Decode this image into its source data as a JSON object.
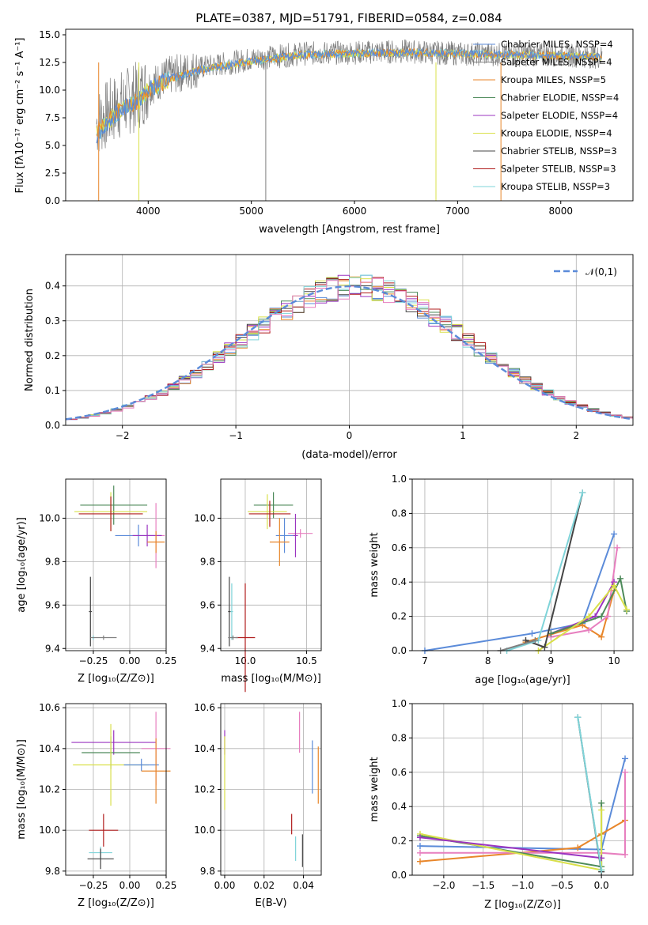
{
  "figure_title": "PLATE=0387, MJD=51791, FIBERID=0584, z=0.084",
  "colors": {
    "Chabrier MILES": "#5b8bd9",
    "Salpeter MILES": "#7f7f7f",
    "Kroupa MILES": "#e8862a",
    "Chabrier ELODIE": "#4d8a5a",
    "Salpeter ELODIE": "#9b34c0",
    "Kroupa ELODIE": "#d9e04a",
    "Chabrier STELIB": "#444444",
    "Salpeter STELIB": "#b01c1c",
    "Kroupa STELIB": "#7fd4d9",
    "Pink": "#e77fbf",
    "Normal": "#5b8bd9"
  },
  "chart_data": [
    {
      "id": "spectrum",
      "type": "line",
      "xlabel": "wavelength [Angstrom, rest frame]",
      "ylabel": "Flux [fλ10⁻¹⁷ erg cm⁻² s⁻¹ A⁻¹]",
      "xlim": [
        3200,
        8700
      ],
      "ylim": [
        0,
        15.5
      ],
      "xticks": [
        "4000",
        "5000",
        "6000",
        "7000",
        "8000"
      ],
      "yticks": [
        "0.0",
        "2.5",
        "5.0",
        "7.5",
        "10.0",
        "12.5",
        "15.0"
      ],
      "legend_position": "right",
      "legend": [
        "Chabrier MILES, N_SSP=4",
        "Salpeter MILES, N_SSP=4",
        "Kroupa MILES, N_SSP=5",
        "Chabrier ELODIE, N_SSP=4",
        "Salpeter ELODIE, N_SSP=4",
        "Kroupa ELODIE, N_SSP=4",
        "Chabrier STELIB, N_SSP=3",
        "Salpeter STELIB, N_SSP=3",
        "Kroupa STELIB, N_SSP=3"
      ],
      "model_trend": {
        "x": [
          3500,
          3700,
          3900,
          4000,
          4200,
          4500,
          5000,
          5500,
          6000,
          6500,
          7000,
          7500,
          8000,
          8400
        ],
        "y": [
          6.0,
          8.0,
          9.0,
          10.0,
          11.0,
          11.8,
          12.6,
          13.2,
          13.3,
          13.4,
          13.3,
          13.2,
          13.1,
          13.0
        ]
      },
      "data_trend": {
        "x": [
          3500,
          3700,
          3900,
          4000,
          4200,
          4500,
          5000,
          5500,
          6000,
          6500,
          7000,
          7500,
          8000,
          8400
        ],
        "y": [
          7.0,
          8.5,
          9.5,
          10.3,
          11.3,
          12.0,
          12.8,
          13.3,
          13.4,
          13.5,
          13.3,
          13.2,
          13.2,
          13.0
        ]
      }
    },
    {
      "id": "residuals",
      "type": "histogram",
      "xlabel": "(data-model)/error",
      "ylabel": "Normed distribution",
      "xlim": [
        -2.5,
        2.5
      ],
      "ylim": [
        0,
        0.49
      ],
      "xticks": [
        -2,
        -1,
        0,
        1,
        2
      ],
      "yticks": [
        "0.0",
        "0.1",
        "0.2",
        "0.3",
        "0.4"
      ],
      "grid": true,
      "legend": [
        "𝒩(0,1)"
      ],
      "legend_position": "top-right",
      "normal_curve": {
        "mean": 0,
        "sigma": 1
      }
    },
    {
      "id": "age_vs_Z",
      "type": "scatter",
      "xlabel": "Z [log₁₀(Z/Z⊙)]",
      "ylabel": "age  [log₁₀(age/yr)]",
      "xlim": [
        -0.44,
        0.25
      ],
      "ylim": [
        9.39,
        10.18
      ],
      "xticks": [
        "−0.25",
        "0.00",
        "0.25"
      ],
      "yticks": [
        "9.4",
        "9.6",
        "9.8",
        "10.0"
      ],
      "grid": true,
      "points": [
        {
          "color": "#4d8a5a",
          "x": -0.11,
          "xerr": 0.23,
          "y": 10.06,
          "yerr": 0.09
        },
        {
          "color": "#d9e04a",
          "x": -0.13,
          "xerr": 0.25,
          "y": 10.03,
          "yerr": 0.09
        },
        {
          "color": "#b01c1c",
          "x": -0.13,
          "xerr": 0.22,
          "y": 10.02,
          "yerr": 0.08
        },
        {
          "color": "#e77fbf",
          "x": 0.18,
          "xerr": 0.06,
          "y": 9.92,
          "yerr": 0.15
        },
        {
          "color": "#5b8bd9",
          "x": 0.06,
          "xerr": 0.16,
          "y": 9.92,
          "yerr": 0.05
        },
        {
          "color": "#9b34c0",
          "x": 0.12,
          "xerr": 0.1,
          "y": 9.92,
          "yerr": 0.05
        },
        {
          "color": "#e8862a",
          "x": 0.18,
          "xerr": 0.06,
          "y": 9.89,
          "yerr": 0.05
        },
        {
          "color": "#444444",
          "x": -0.27,
          "xerr": 0.01,
          "y": 9.57,
          "yerr": 0.16
        },
        {
          "color": "#7fd4d9",
          "x": -0.25,
          "xerr": 0.01,
          "y": 9.45,
          "yerr": 0.01
        },
        {
          "color": "#7f7f7f",
          "x": -0.18,
          "xerr": 0.09,
          "y": 9.45,
          "yerr": 0.01
        }
      ]
    },
    {
      "id": "age_vs_mass",
      "type": "scatter",
      "xlabel": "mass [log₁₀(M/M⊙)]",
      "ylim": [
        9.39,
        10.18
      ],
      "xlim": [
        9.8,
        10.62
      ],
      "xticks": [
        "10.0",
        "10.5"
      ],
      "yticks": [
        "9.4",
        "9.6",
        "9.8",
        "10.0"
      ],
      "grid": true,
      "points": [
        {
          "color": "#4d8a5a",
          "x": 10.23,
          "xerr": 0.16,
          "y": 10.06,
          "yerr": 0.06
        },
        {
          "color": "#d9e04a",
          "x": 10.18,
          "xerr": 0.16,
          "y": 10.03,
          "yerr": 0.08
        },
        {
          "color": "#b01c1c",
          "x": 10.2,
          "xerr": 0.17,
          "y": 10.02,
          "yerr": 0.06
        },
        {
          "color": "#e77fbf",
          "x": 10.45,
          "xerr": 0.1,
          "y": 9.93,
          "yerr": 0.02
        },
        {
          "color": "#5b8bd9",
          "x": 10.32,
          "xerr": 0.07,
          "y": 9.92,
          "yerr": 0.08
        },
        {
          "color": "#9b34c0",
          "x": 10.41,
          "xerr": 0.02,
          "y": 9.92,
          "yerr": 0.1
        },
        {
          "color": "#e8862a",
          "x": 10.28,
          "xerr": 0.08,
          "y": 9.89,
          "yerr": 0.11
        },
        {
          "color": "#444444",
          "x": 9.87,
          "xerr": 0.01,
          "y": 9.57,
          "yerr": 0.16
        },
        {
          "color": "#7fd4d9",
          "x": 9.89,
          "xerr": 0.01,
          "y": 9.57,
          "yerr": 0.13
        },
        {
          "color": "#b01c1c",
          "x": 10.0,
          "xerr": 0.08,
          "y": 9.45,
          "yerr": 0.25
        },
        {
          "color": "#7f7f7f",
          "x": 9.9,
          "xerr": 0.04,
          "y": 9.45,
          "yerr": 0.01
        }
      ]
    },
    {
      "id": "weight_vs_age",
      "type": "line",
      "xlabel": "age  [log₁₀(age/yr)]",
      "ylabel": "mass weight",
      "xlim": [
        6.8,
        10.3
      ],
      "ylim": [
        0,
        1.0
      ],
      "xticks": [
        "7",
        "8",
        "9",
        "10"
      ],
      "yticks": [
        "0.0",
        "0.2",
        "0.4",
        "0.6",
        "0.8",
        "1.0"
      ],
      "grid": true,
      "series": [
        {
          "color": "#5b8bd9",
          "x": [
            7.0,
            8.7,
            9.5,
            10.0
          ],
          "y": [
            0.0,
            0.1,
            0.16,
            0.68
          ]
        },
        {
          "color": "#e8862a",
          "x": [
            8.6,
            9.5,
            9.8,
            10.0
          ],
          "y": [
            0.05,
            0.15,
            0.08,
            0.35
          ]
        },
        {
          "color": "#e77fbf",
          "x": [
            9.0,
            9.6,
            9.9,
            10.05
          ],
          "y": [
            0.08,
            0.12,
            0.2,
            0.6
          ]
        },
        {
          "color": "#9b34c0",
          "x": [
            9.0,
            9.7,
            10.0
          ],
          "y": [
            0.1,
            0.2,
            0.4
          ]
        },
        {
          "color": "#4d8a5a",
          "x": [
            9.0,
            9.8,
            10.1,
            10.2
          ],
          "y": [
            0.1,
            0.2,
            0.42,
            0.23
          ]
        },
        {
          "color": "#d9e04a",
          "x": [
            8.8,
            9.6,
            10.0,
            10.2
          ],
          "y": [
            0.0,
            0.2,
            0.38,
            0.24
          ]
        },
        {
          "color": "#444444",
          "x": [
            8.6,
            8.9,
            9.5
          ],
          "y": [
            0.06,
            0.02,
            0.92
          ]
        },
        {
          "color": "#7fd4d9",
          "x": [
            8.3,
            8.8,
            9.5
          ],
          "y": [
            0.0,
            0.06,
            0.92
          ]
        },
        {
          "color": "#7f7f7f",
          "x": [
            8.2,
            8.75
          ],
          "y": [
            0.0,
            0.06
          ]
        }
      ]
    },
    {
      "id": "mass_vs_Z",
      "type": "scatter",
      "xlabel": "Z [log₁₀(Z/Z⊙)]",
      "ylabel": "mass [log₁₀(M/M⊙)]",
      "xlim": [
        -0.44,
        0.25
      ],
      "ylim": [
        9.78,
        10.62
      ],
      "xticks": [
        "−0.25",
        "0.00",
        "0.25"
      ],
      "yticks": [
        "9.8",
        "10.0",
        "10.2",
        "10.4",
        "10.6"
      ],
      "grid": true,
      "points": [
        {
          "color": "#9b34c0",
          "x": -0.11,
          "xerr": 0.29,
          "y": 10.43,
          "yerr": 0.06
        },
        {
          "color": "#e77fbf",
          "x": 0.18,
          "xerr": 0.1,
          "y": 10.4,
          "yerr": 0.18
        },
        {
          "color": "#4d8a5a",
          "x": -0.13,
          "xerr": 0.2,
          "y": 10.38,
          "yerr": 0.08
        },
        {
          "color": "#d9e04a",
          "x": -0.13,
          "xerr": 0.26,
          "y": 10.32,
          "yerr": 0.2
        },
        {
          "color": "#5b8bd9",
          "x": 0.08,
          "xerr": 0.12,
          "y": 10.32,
          "yerr": 0.03
        },
        {
          "color": "#e8862a",
          "x": 0.18,
          "xerr": 0.1,
          "y": 10.29,
          "yerr": 0.16
        },
        {
          "color": "#b01c1c",
          "x": -0.18,
          "xerr": 0.1,
          "y": 10.0,
          "yerr": 0.08
        },
        {
          "color": "#7fd4d9",
          "x": -0.2,
          "xerr": 0.08,
          "y": 9.89,
          "yerr": 0.03
        },
        {
          "color": "#444444",
          "x": -0.2,
          "xerr": 0.09,
          "y": 9.86,
          "yerr": 0.05
        }
      ]
    },
    {
      "id": "mass_vs_EBV",
      "type": "scatter",
      "xlabel": "E(B-V)",
      "xlim": [
        -0.002,
        0.049
      ],
      "ylim": [
        9.78,
        10.62
      ],
      "xticks": [
        "0.00",
        "0.02",
        "0.04"
      ],
      "yticks": [
        "9.8",
        "10.0",
        "10.2",
        "10.4",
        "10.6"
      ],
      "grid": true,
      "points": [
        {
          "color": "#9b34c0",
          "x": 0.0,
          "xerr": 0.0,
          "y": 10.43,
          "yerr": 0.06
        },
        {
          "color": "#d9e04a",
          "x": 0.0,
          "xerr": 0.0,
          "y": 10.28,
          "yerr": 0.18
        },
        {
          "color": "#e77fbf",
          "x": 0.038,
          "xerr": 0.0,
          "y": 10.48,
          "yerr": 0.1
        },
        {
          "color": "#5b8bd9",
          "x": 0.0445,
          "xerr": 0.0,
          "y": 10.31,
          "yerr": 0.13
        },
        {
          "color": "#e8862a",
          "x": 0.0475,
          "xerr": 0.0,
          "y": 10.27,
          "yerr": 0.14
        },
        {
          "color": "#b01c1c",
          "x": 0.034,
          "xerr": 0.0,
          "y": 10.03,
          "yerr": 0.05
        },
        {
          "color": "#7fd4d9",
          "x": 0.036,
          "xerr": 0.0,
          "y": 9.91,
          "yerr": 0.06
        },
        {
          "color": "#444444",
          "x": 0.0395,
          "xerr": 0.0,
          "y": 9.9,
          "yerr": 0.08
        }
      ]
    },
    {
      "id": "weight_vs_Z",
      "type": "line",
      "xlabel": "Z [log₁₀(Z/Z⊙)]",
      "ylabel": "mass weight",
      "xlim": [
        -2.4,
        0.4
      ],
      "ylim": [
        0,
        1.0
      ],
      "xticks": [
        "−2.0",
        "−1.5",
        "−1.0",
        "−0.5",
        "0.0"
      ],
      "yticks": [
        "0.0",
        "0.2",
        "0.4",
        "0.6",
        "0.8",
        "1.0"
      ],
      "grid": true,
      "series": [
        {
          "color": "#5b8bd9",
          "x": [
            -2.3,
            0.0,
            0.3
          ],
          "y": [
            0.17,
            0.15,
            0.68
          ]
        },
        {
          "color": "#e8862a",
          "x": [
            -2.3,
            -0.3,
            0.0,
            0.3
          ],
          "y": [
            0.08,
            0.16,
            0.24,
            0.32
          ]
        },
        {
          "color": "#e77fbf",
          "x": [
            -2.3,
            0.0,
            0.3,
            0.3
          ],
          "y": [
            0.13,
            0.13,
            0.12,
            0.6
          ]
        },
        {
          "color": "#4d8a5a",
          "x": [
            -2.3,
            0.0,
            0.0
          ],
          "y": [
            0.23,
            0.05,
            0.42
          ]
        },
        {
          "color": "#d9e04a",
          "x": [
            -2.3,
            0.0,
            0.0
          ],
          "y": [
            0.24,
            0.03,
            0.38
          ]
        },
        {
          "color": "#9b34c0",
          "x": [
            -2.3,
            0.0
          ],
          "y": [
            0.22,
            0.1
          ]
        },
        {
          "color": "#444444",
          "x": [
            -0.3,
            0.0
          ],
          "y": [
            0.92,
            0.02
          ]
        },
        {
          "color": "#7fd4d9",
          "x": [
            -0.3,
            0.0
          ],
          "y": [
            0.92,
            0.03
          ]
        }
      ]
    }
  ]
}
